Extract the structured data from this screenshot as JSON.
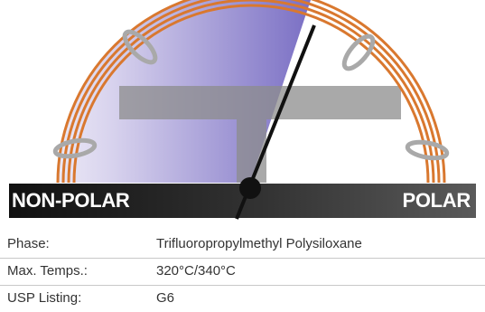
{
  "scale": {
    "left_label": "NON-POLAR",
    "right_label": "POLAR"
  },
  "specs": [
    {
      "key": "Phase:",
      "value": "Trifluoropropylmethyl Polysiloxane"
    },
    {
      "key": "Max. Temps.:",
      "value": "320°C/340°C"
    },
    {
      "key": "USP Listing:",
      "value": "G6"
    }
  ],
  "colors": {
    "coil": "#d9782f",
    "ring": "#a9a9a9",
    "bar_dark": "#1a1a1a",
    "fill_light": "#f1eef8",
    "fill_dark": "#7a6fc4",
    "needle": "#111111"
  }
}
